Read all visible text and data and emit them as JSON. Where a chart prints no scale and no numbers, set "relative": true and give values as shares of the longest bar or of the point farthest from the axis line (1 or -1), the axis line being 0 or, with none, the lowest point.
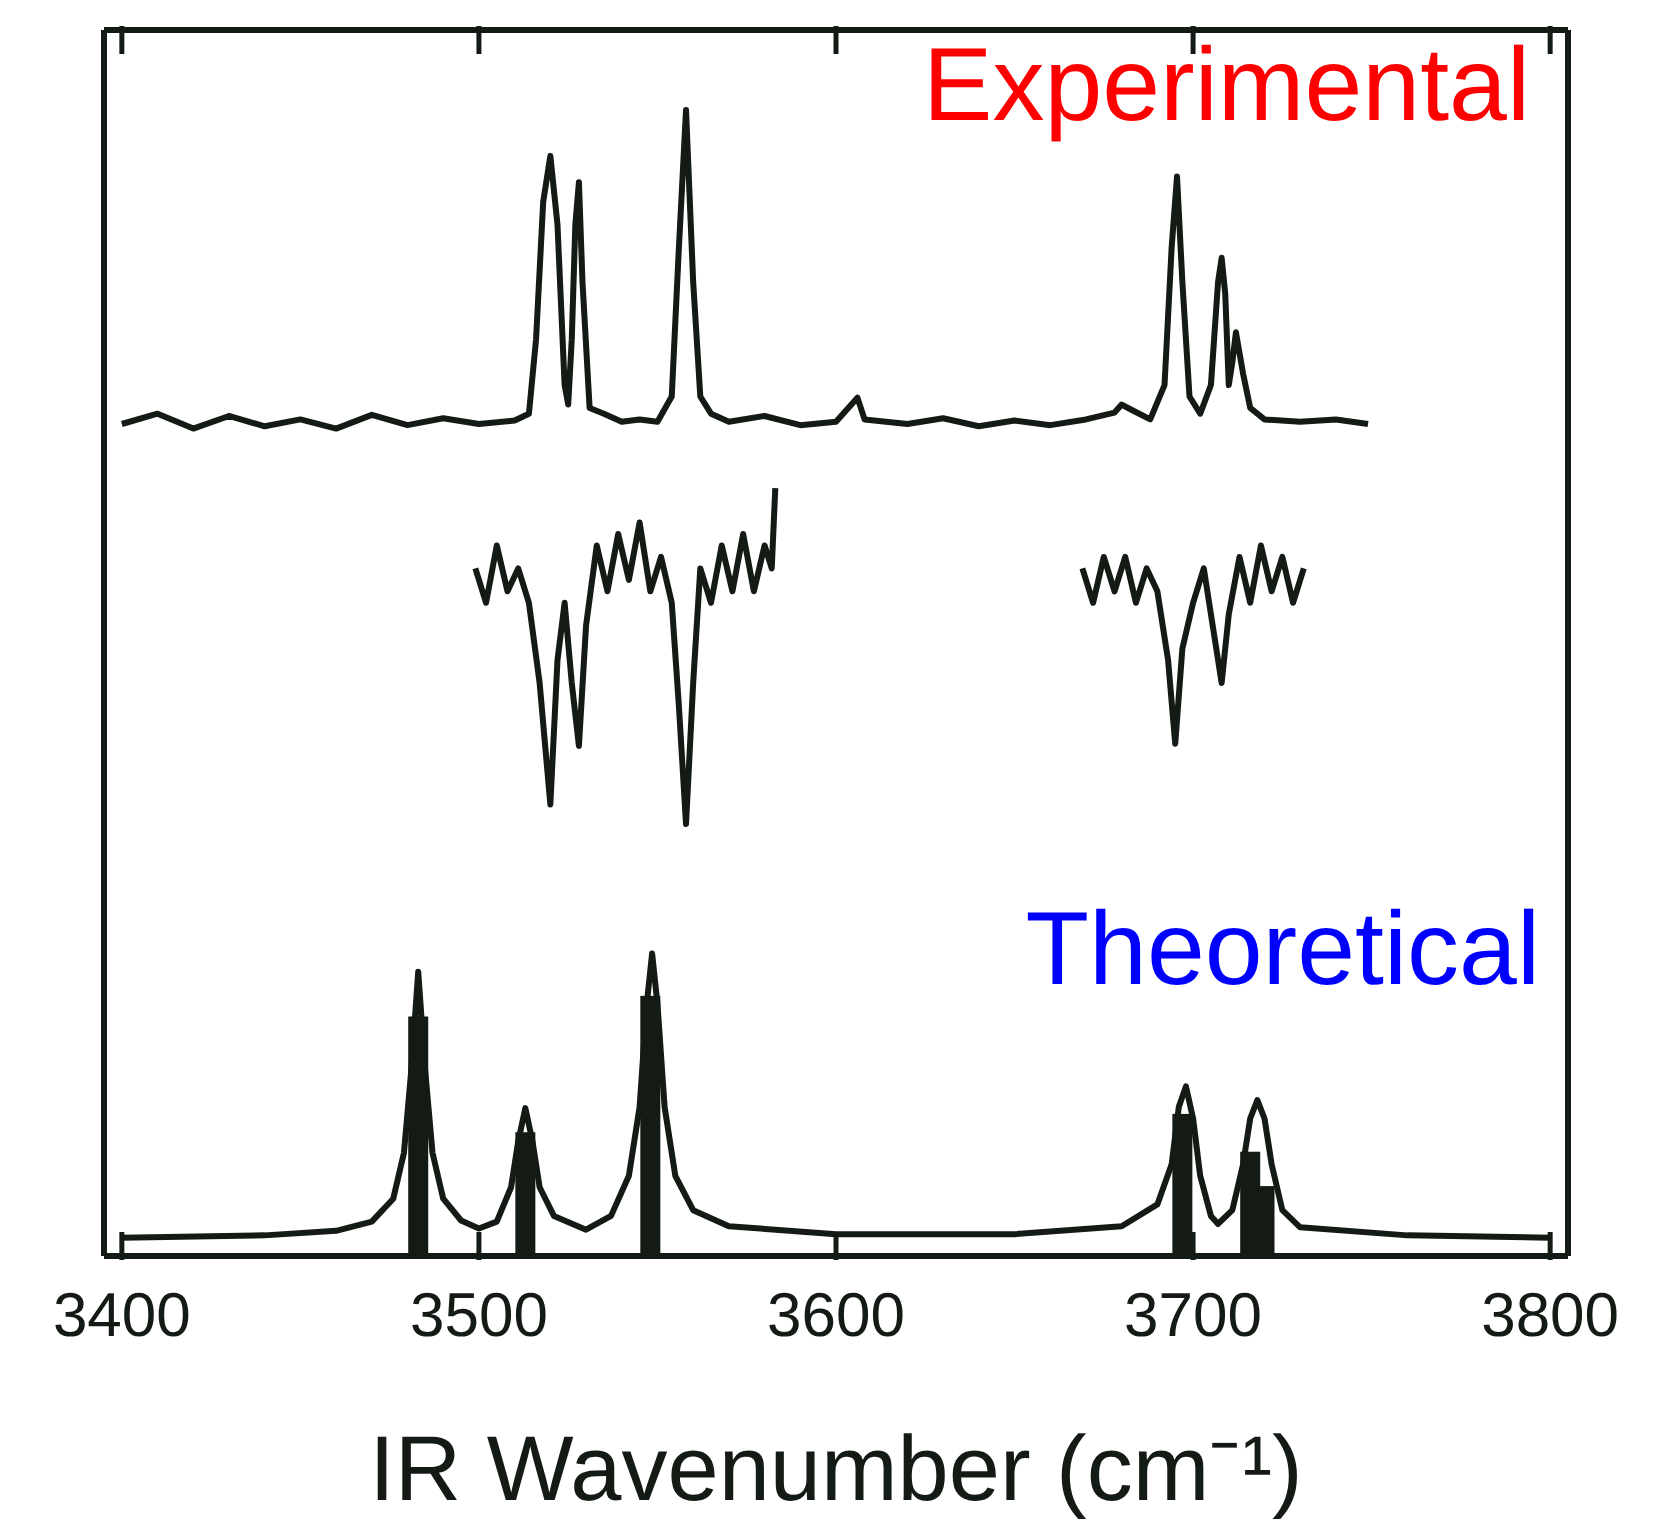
{
  "chart_data": {
    "type": "line",
    "xlabel": "IR Wavenumber (cm⁻¹)",
    "relative": true,
    "xlim": [
      3395,
      3805
    ],
    "xticks": [
      3400,
      3500,
      3600,
      3700,
      3800
    ],
    "tick_labels": "x",
    "series": [
      {
        "name": "Experimental",
        "color": "#141a14",
        "x": [
          3400,
          3410,
          3420,
          3430,
          3440,
          3450,
          3460,
          3470,
          3480,
          3490,
          3500,
          3510,
          3514,
          3516,
          3518,
          3520,
          3522,
          3524,
          3525,
          3526,
          3527,
          3528,
          3529,
          3531,
          3535,
          3540,
          3545,
          3550,
          3554,
          3556,
          3558,
          3560,
          3562,
          3565,
          3570,
          3580,
          3590,
          3600,
          3606,
          3608,
          3620,
          3630,
          3640,
          3650,
          3660,
          3670,
          3678,
          3680,
          3683,
          3688,
          3692,
          3694,
          3695.5,
          3697,
          3699,
          3702,
          3705,
          3707,
          3708,
          3709,
          3710,
          3711,
          3712,
          3714,
          3716,
          3720,
          3730,
          3740,
          3749
        ],
        "values": [
          0.726,
          0.735,
          0.722,
          0.733,
          0.724,
          0.73,
          0.722,
          0.734,
          0.725,
          0.731,
          0.726,
          0.729,
          0.735,
          0.8,
          0.92,
          0.96,
          0.9,
          0.76,
          0.743,
          0.8,
          0.9,
          0.937,
          0.85,
          0.74,
          0.735,
          0.728,
          0.73,
          0.728,
          0.75,
          0.88,
          1.0,
          0.85,
          0.75,
          0.735,
          0.728,
          0.733,
          0.725,
          0.728,
          0.749,
          0.73,
          0.726,
          0.731,
          0.724,
          0.729,
          0.725,
          0.73,
          0.736,
          0.743,
          0.738,
          0.73,
          0.76,
          0.88,
          0.942,
          0.85,
          0.75,
          0.735,
          0.76,
          0.85,
          0.871,
          0.84,
          0.76,
          0.78,
          0.806,
          0.77,
          0.74,
          0.73,
          0.728,
          0.73,
          0.726
        ]
      },
      {
        "color": "#141a14",
        "x": [
          3499,
          3502,
          3505,
          3508,
          3511,
          3514,
          3517,
          3520,
          3522,
          3524,
          3526,
          3528,
          3530,
          3533,
          3536,
          3539,
          3542,
          3545,
          3548,
          3551,
          3554,
          3556,
          3558,
          3560,
          3562,
          3565,
          3568,
          3571,
          3574,
          3577,
          3580,
          3582,
          3583,
          3626,
          3669,
          3672,
          3675,
          3678,
          3681,
          3684,
          3687,
          3690,
          3693,
          3695,
          3697,
          3700,
          3703,
          3706,
          3708,
          3710,
          3713,
          3716,
          3719,
          3722,
          3725,
          3728,
          3731
        ],
        "values": [
          0.6,
          0.57,
          0.62,
          0.58,
          0.6,
          0.57,
          0.5,
          0.394,
          0.52,
          0.57,
          0.5,
          0.445,
          0.55,
          0.62,
          0.58,
          0.63,
          0.59,
          0.64,
          0.58,
          0.61,
          0.57,
          0.48,
          0.377,
          0.5,
          0.6,
          0.57,
          0.62,
          0.58,
          0.63,
          0.58,
          0.62,
          0.6,
          0.67,
          null,
          0.6,
          0.57,
          0.61,
          0.58,
          0.61,
          0.57,
          0.6,
          0.58,
          0.52,
          0.447,
          0.53,
          0.57,
          0.6,
          0.54,
          0.5,
          0.56,
          0.61,
          0.57,
          0.62,
          0.58,
          0.61,
          0.57,
          0.6
        ]
      },
      {
        "name": "Theoretical",
        "color": "#141a14",
        "x": [
          3400,
          3440,
          3460,
          3470,
          3476,
          3479,
          3481,
          3483,
          3485,
          3487,
          3490,
          3495,
          3500,
          3505,
          3509,
          3511,
          3513,
          3515,
          3517,
          3521,
          3530,
          3537,
          3542,
          3545,
          3547,
          3548.5,
          3550,
          3552,
          3555,
          3560,
          3570,
          3600,
          3650,
          3680,
          3690,
          3694,
          3696,
          3698,
          3700,
          3702,
          3705,
          3707,
          3711,
          3714,
          3716,
          3718,
          3720,
          3722,
          3725,
          3730,
          3760,
          3800
        ],
        "values": [
          0.016,
          0.018,
          0.022,
          0.03,
          0.05,
          0.09,
          0.16,
          0.248,
          0.16,
          0.09,
          0.05,
          0.031,
          0.024,
          0.03,
          0.06,
          0.1,
          0.129,
          0.1,
          0.06,
          0.035,
          0.023,
          0.035,
          0.07,
          0.13,
          0.22,
          0.264,
          0.22,
          0.13,
          0.07,
          0.04,
          0.026,
          0.019,
          0.019,
          0.026,
          0.045,
          0.08,
          0.13,
          0.148,
          0.12,
          0.07,
          0.035,
          0.028,
          0.04,
          0.08,
          0.12,
          0.136,
          0.12,
          0.08,
          0.04,
          0.025,
          0.018,
          0.016
        ]
      },
      {
        "type": "bar",
        "color": "#141a14",
        "x": [
          3483,
          3513,
          3548,
          3697,
          3716,
          3720
        ],
        "values": [
          0.209,
          0.108,
          0.227,
          0.124,
          0.091,
          0.061
        ]
      }
    ]
  }
}
